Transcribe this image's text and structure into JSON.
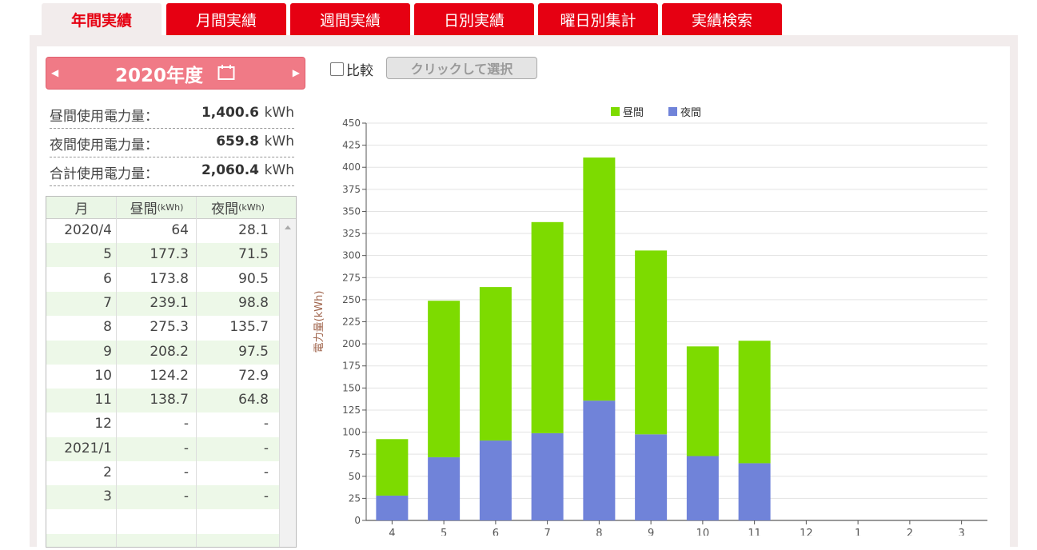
{
  "tabs": [
    {
      "label": "年間実績",
      "active": true
    },
    {
      "label": "月間実績",
      "active": false
    },
    {
      "label": "週間実績",
      "active": false
    },
    {
      "label": "日別実績",
      "active": false
    },
    {
      "label": "曜日別集計",
      "active": false
    },
    {
      "label": "実績検索",
      "active": false
    }
  ],
  "year_selector": {
    "label": "2020年度",
    "prev_icon": "triangle-left",
    "next_icon": "triangle-right",
    "icon": "calendar-icon"
  },
  "compare": {
    "label": "比較",
    "checked": false,
    "button_label": "クリックして選択"
  },
  "summary": [
    {
      "label": "昼間使用電力量：",
      "value": "1,400.6",
      "unit": "kWh"
    },
    {
      "label": "夜間使用電力量：",
      "value": "659.8",
      "unit": "kWh"
    },
    {
      "label": "合計使用電力量：",
      "value": "2,060.4",
      "unit": "kWh"
    }
  ],
  "table": {
    "headers": {
      "month": "月",
      "day": "昼間",
      "night": "夜間",
      "unit": "(kWh)"
    },
    "rows": [
      {
        "month": "2020/4",
        "day": "64",
        "night": "28.1"
      },
      {
        "month": "5",
        "day": "177.3",
        "night": "71.5"
      },
      {
        "month": "6",
        "day": "173.8",
        "night": "90.5"
      },
      {
        "month": "7",
        "day": "239.1",
        "night": "98.8"
      },
      {
        "month": "8",
        "day": "275.3",
        "night": "135.7"
      },
      {
        "month": "9",
        "day": "208.2",
        "night": "97.5"
      },
      {
        "month": "10",
        "day": "124.2",
        "night": "72.9"
      },
      {
        "month": "11",
        "day": "138.7",
        "night": "64.8"
      },
      {
        "month": "12",
        "day": "-",
        "night": "-"
      },
      {
        "month": "2021/1",
        "day": "-",
        "night": "-"
      },
      {
        "month": "2",
        "day": "-",
        "night": "-"
      },
      {
        "month": "3",
        "day": "-",
        "night": "-"
      }
    ]
  },
  "colors": {
    "brand_red": "#e60012",
    "day": "#7ddb00",
    "night": "#7083d9",
    "year_bg": "#f07a86"
  },
  "chart_data": {
    "type": "bar",
    "stacked": true,
    "categories": [
      "4",
      "5",
      "6",
      "7",
      "8",
      "9",
      "10",
      "11",
      "12",
      "1",
      "2",
      "3"
    ],
    "series": [
      {
        "name": "夜間",
        "color": "#7083d9",
        "values": [
          28.1,
          71.5,
          90.5,
          98.8,
          135.7,
          97.5,
          72.9,
          64.8,
          null,
          null,
          null,
          null
        ]
      },
      {
        "name": "昼間",
        "color": "#7ddb00",
        "values": [
          64,
          177.3,
          173.8,
          239.1,
          275.3,
          208.2,
          124.2,
          138.7,
          null,
          null,
          null,
          null
        ]
      }
    ],
    "legend": [
      {
        "name": "昼間",
        "color": "#7ddb00"
      },
      {
        "name": "夜間",
        "color": "#7083d9"
      }
    ],
    "ylabel": "電力量(kWh)",
    "xlabel": "",
    "ylim": [
      0,
      450
    ],
    "ytick_step": 25,
    "grid": true,
    "legend_position": "top-center"
  }
}
